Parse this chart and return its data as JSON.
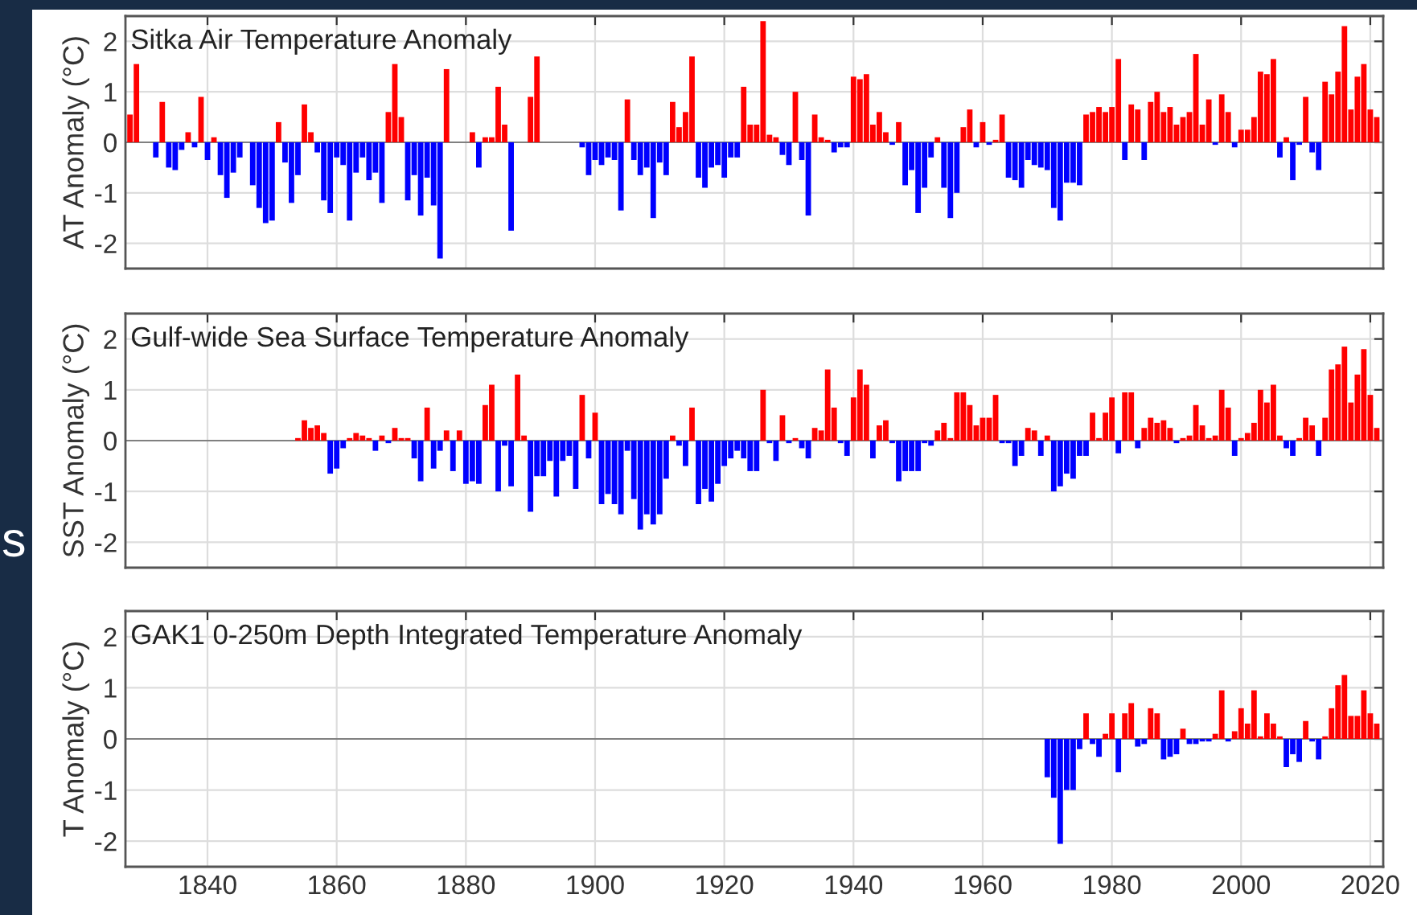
{
  "chart_data": [
    {
      "type": "bar",
      "title": "Sitka Air Temperature Anomaly",
      "ylabel": "AT Anomaly (°C)",
      "annotations": [
        "s"
      ],
      "x": [
        1828,
        1829,
        1830,
        1831,
        1832,
        1833,
        1834,
        1835,
        1836,
        1837,
        1838,
        1839,
        1840,
        1841,
        1842,
        1843,
        1844,
        1845,
        1846,
        1847,
        1848,
        1849,
        1850,
        1851,
        1852,
        1853,
        1854,
        1855,
        1856,
        1857,
        1858,
        1859,
        1860,
        1861,
        1862,
        1863,
        1864,
        1865,
        1866,
        1867,
        1868,
        1869,
        1870,
        1871,
        1872,
        1873,
        1874,
        1875,
        1876,
        1877,
        1878,
        1879,
        1880,
        1881,
        1882,
        1883,
        1884,
        1885,
        1886,
        1887,
        1888,
        1889,
        1890,
        1891,
        1892,
        1893,
        1894,
        1895,
        1896,
        1897,
        1898,
        1899,
        1900,
        1901,
        1902,
        1903,
        1904,
        1905,
        1906,
        1907,
        1908,
        1909,
        1910,
        1911,
        1912,
        1913,
        1914,
        1915,
        1916,
        1917,
        1918,
        1919,
        1920,
        1921,
        1922,
        1923,
        1924,
        1925,
        1926,
        1927,
        1928,
        1929,
        1930,
        1931,
        1932,
        1933,
        1934,
        1935,
        1936,
        1937,
        1938,
        1939,
        1940,
        1941,
        1942,
        1943,
        1944,
        1945,
        1946,
        1947,
        1948,
        1949,
        1950,
        1951,
        1952,
        1953,
        1954,
        1955,
        1956,
        1957,
        1958,
        1959,
        1960,
        1961,
        1962,
        1963,
        1964,
        1965,
        1966,
        1967,
        1968,
        1969,
        1970,
        1971,
        1972,
        1973,
        1974,
        1975,
        1976,
        1977,
        1978,
        1979,
        1980,
        1981,
        1982,
        1983,
        1984,
        1985,
        1986,
        1987,
        1988,
        1989,
        1990,
        1991,
        1992,
        1993,
        1994,
        1995,
        1996,
        1997,
        1998,
        1999,
        2000,
        2001,
        2002,
        2003,
        2004,
        2005,
        2006,
        2007,
        2008,
        2009,
        2010,
        2011,
        2012,
        2013,
        2014,
        2015,
        2016,
        2017,
        2018,
        2019,
        2020,
        2021
      ],
      "values": [
        0.55,
        1.55,
        null,
        null,
        -0.3,
        0.8,
        -0.5,
        -0.55,
        -0.15,
        0.2,
        -0.1,
        0.9,
        -0.35,
        0.1,
        -0.65,
        -1.1,
        -0.6,
        -0.3,
        null,
        -0.85,
        -1.3,
        -1.6,
        -1.55,
        0.4,
        -0.4,
        -1.2,
        -0.65,
        0.75,
        0.2,
        -0.2,
        -1.15,
        -1.4,
        -0.3,
        -0.45,
        -1.55,
        -0.6,
        -0.3,
        -0.75,
        -0.6,
        -1.2,
        0.6,
        1.55,
        0.5,
        -1.15,
        -0.65,
        -1.45,
        -0.7,
        -1.25,
        -2.3,
        1.45,
        null,
        null,
        null,
        0.2,
        -0.5,
        0.1,
        0.1,
        1.1,
        0.35,
        -1.75,
        null,
        null,
        0.9,
        1.7,
        null,
        null,
        null,
        null,
        null,
        null,
        -0.1,
        -0.65,
        -0.35,
        -0.45,
        -0.3,
        -0.35,
        -1.35,
        0.85,
        -0.35,
        -0.65,
        -0.5,
        -1.5,
        -0.4,
        -0.65,
        0.8,
        0.3,
        0.6,
        1.7,
        -0.7,
        -0.9,
        -0.5,
        -0.45,
        -0.7,
        -0.3,
        -0.3,
        1.1,
        0.35,
        0.35,
        2.4,
        0.15,
        0.1,
        -0.25,
        -0.45,
        1.0,
        -0.35,
        -1.45,
        0.55,
        0.1,
        0.05,
        -0.2,
        -0.1,
        -0.1,
        1.3,
        1.25,
        1.35,
        0.35,
        0.6,
        0.2,
        -0.05,
        0.4,
        -0.85,
        -0.55,
        -1.4,
        -0.9,
        -0.3,
        0.1,
        -0.9,
        -1.5,
        -1.0,
        0.3,
        0.65,
        -0.1,
        0.4,
        -0.05,
        0.05,
        0.55,
        -0.7,
        -0.75,
        -0.9,
        -0.35,
        -0.45,
        -0.5,
        -0.55,
        -1.3,
        -1.55,
        -0.8,
        -0.8,
        -0.85,
        0.55,
        0.6,
        0.7,
        0.6,
        0.7,
        1.65,
        -0.35,
        0.75,
        0.65,
        -0.35,
        0.8,
        1.0,
        0.6,
        0.7,
        0.35,
        0.5,
        0.6,
        1.75,
        0.35,
        0.85,
        -0.05,
        0.95,
        0.6,
        -0.1,
        0.25,
        0.25,
        0.5,
        1.4,
        1.35,
        1.65,
        -0.3,
        0.1,
        -0.75,
        -0.05,
        0.9,
        -0.2,
        -0.55,
        1.2,
        0.95,
        1.4,
        2.3,
        0.65,
        1.3,
        1.55,
        0.65,
        0.5
      ],
      "colors": [
        "#ff0000",
        "#ff0000",
        null,
        null,
        "#0000ff",
        "#ff0000",
        "#0000ff",
        "#0000ff",
        "#0000ff",
        "#ff0000",
        "#0000ff",
        "#ff0000",
        "#0000ff",
        "#ff0000",
        "#0000ff",
        "#0000ff",
        "#0000ff",
        "#0000ff",
        null,
        "#0000ff",
        "#0000ff",
        "#0000ff",
        "#0000ff",
        "#ff0000",
        "#0000ff",
        "#0000ff",
        "#0000ff",
        "#ff0000",
        "#ff0000",
        "#0000ff",
        "#0000ff",
        "#0000ff",
        "#0000ff",
        "#0000ff",
        "#0000ff",
        "#0000ff",
        "#0000ff",
        "#0000ff",
        "#0000ff",
        "#0000ff",
        "#ff0000",
        "#ff0000",
        "#ff0000",
        "#0000ff",
        "#0000ff",
        "#0000ff",
        "#0000ff",
        "#0000ff",
        "#0000ff",
        "#ff0000",
        null,
        null,
        null,
        "#ff0000",
        "#0000ff",
        "#ff0000",
        "#ff0000",
        "#ff0000",
        "#ff0000",
        "#0000ff",
        null,
        null,
        "#ff0000",
        "#ff0000",
        null,
        null,
        null,
        null,
        null,
        null,
        "#0000ff",
        "#0000ff",
        "#0000ff",
        "#0000ff",
        "#0000ff",
        "#0000ff",
        "#0000ff",
        "#ff0000",
        "#0000ff",
        "#0000ff",
        "#0000ff",
        "#0000ff",
        "#0000ff",
        "#0000ff",
        "#ff0000",
        "#ff0000",
        "#ff0000",
        "#ff0000",
        "#0000ff",
        "#0000ff",
        "#0000ff",
        "#0000ff",
        "#0000ff",
        "#0000ff",
        "#0000ff",
        "#ff0000",
        "#ff0000",
        "#ff0000",
        "#ff0000",
        "#ff0000",
        "#ff0000",
        "#0000ff",
        "#0000ff",
        "#ff0000",
        "#0000ff",
        "#0000ff",
        "#ff0000",
        "#ff0000",
        "#ff0000",
        "#0000ff",
        "#0000ff",
        "#0000ff",
        "#ff0000",
        "#ff0000",
        "#ff0000",
        "#ff0000",
        "#ff0000",
        "#ff0000",
        "#0000ff",
        "#ff0000",
        "#0000ff",
        "#0000ff",
        "#0000ff",
        "#0000ff",
        "#0000ff",
        "#ff0000",
        "#0000ff",
        "#0000ff",
        "#0000ff",
        "#ff0000",
        "#ff0000",
        "#0000ff",
        "#ff0000",
        "#0000ff",
        "#ff0000",
        "#ff0000",
        "#0000ff",
        "#0000ff",
        "#0000ff",
        "#0000ff",
        "#0000ff",
        "#0000ff",
        "#0000ff",
        "#0000ff",
        "#0000ff",
        "#0000ff",
        "#0000ff",
        "#0000ff",
        "#ff0000",
        "#ff0000",
        "#ff0000",
        "#ff0000",
        "#ff0000",
        "#ff0000",
        "#0000ff",
        "#ff0000",
        "#ff0000",
        "#0000ff",
        "#ff0000",
        "#ff0000",
        "#ff0000",
        "#ff0000",
        "#ff0000",
        "#ff0000",
        "#ff0000",
        "#ff0000",
        "#ff0000",
        "#ff0000",
        "#0000ff",
        "#ff0000",
        "#ff0000",
        "#0000ff",
        "#ff0000",
        "#ff0000",
        "#ff0000",
        "#ff0000",
        "#ff0000",
        "#ff0000",
        "#0000ff",
        "#ff0000",
        "#0000ff",
        "#0000ff",
        "#ff0000",
        "#0000ff",
        "#0000ff",
        "#ff0000",
        "#ff0000",
        "#ff0000",
        "#ff0000",
        "#ff0000",
        "#ff0000",
        "#ff0000",
        "#ff0000",
        "#ff0000"
      ],
      "xlim": [
        1827.3,
        2022
      ],
      "ylim": [
        -2.5,
        2.5
      ],
      "xticks": [
        1840,
        1860,
        1880,
        1900,
        1920,
        1940,
        1960,
        1980,
        2000,
        2020
      ],
      "yticks": [
        -2,
        -1,
        0,
        1,
        2
      ],
      "grid": true,
      "tick_labels": "y"
    },
    {
      "type": "bar",
      "title": "Gulf-wide Sea Surface Temperature Anomaly",
      "ylabel": "SST Anomaly (°C)",
      "x": [
        1854,
        1855,
        1856,
        1857,
        1858,
        1859,
        1860,
        1861,
        1862,
        1863,
        1864,
        1865,
        1866,
        1867,
        1868,
        1869,
        1870,
        1871,
        1872,
        1873,
        1874,
        1875,
        1876,
        1877,
        1878,
        1879,
        1880,
        1881,
        1882,
        1883,
        1884,
        1885,
        1886,
        1887,
        1888,
        1889,
        1890,
        1891,
        1892,
        1893,
        1894,
        1895,
        1896,
        1897,
        1898,
        1899,
        1900,
        1901,
        1902,
        1903,
        1904,
        1905,
        1906,
        1907,
        1908,
        1909,
        1910,
        1911,
        1912,
        1913,
        1914,
        1915,
        1916,
        1917,
        1918,
        1919,
        1920,
        1921,
        1922,
        1923,
        1924,
        1925,
        1926,
        1927,
        1928,
        1929,
        1930,
        1931,
        1932,
        1933,
        1934,
        1935,
        1936,
        1937,
        1938,
        1939,
        1940,
        1941,
        1942,
        1943,
        1944,
        1945,
        1946,
        1947,
        1948,
        1949,
        1950,
        1951,
        1952,
        1953,
        1954,
        1955,
        1956,
        1957,
        1958,
        1959,
        1960,
        1961,
        1962,
        1963,
        1964,
        1965,
        1966,
        1967,
        1968,
        1969,
        1970,
        1971,
        1972,
        1973,
        1974,
        1975,
        1976,
        1977,
        1978,
        1979,
        1980,
        1981,
        1982,
        1983,
        1984,
        1985,
        1986,
        1987,
        1988,
        1989,
        1990,
        1991,
        1992,
        1993,
        1994,
        1995,
        1996,
        1997,
        1998,
        1999,
        2000,
        2001,
        2002,
        2003,
        2004,
        2005,
        2006,
        2007,
        2008,
        2009,
        2010,
        2011,
        2012,
        2013,
        2014,
        2015,
        2016,
        2017,
        2018,
        2019,
        2020,
        2021
      ],
      "values": [
        0.05,
        0.4,
        0.25,
        0.3,
        0.15,
        -0.65,
        -0.55,
        -0.15,
        0.05,
        0.15,
        0.1,
        0.05,
        -0.2,
        0.1,
        -0.05,
        0.25,
        0.05,
        0.05,
        -0.35,
        -0.8,
        0.65,
        -0.55,
        -0.2,
        0.2,
        -0.6,
        0.2,
        -0.85,
        -0.8,
        -0.85,
        0.7,
        1.1,
        -1.0,
        -0.1,
        -0.9,
        1.3,
        0.1,
        -1.4,
        -0.7,
        -0.7,
        -0.4,
        -1.1,
        -0.4,
        -0.3,
        -0.95,
        0.9,
        -0.35,
        0.55,
        -1.25,
        -1.05,
        -1.25,
        -1.45,
        -0.2,
        -1.15,
        -1.75,
        -1.45,
        -1.65,
        -1.45,
        -0.75,
        0.1,
        -0.1,
        -0.5,
        0.65,
        -1.25,
        -0.95,
        -1.2,
        -0.85,
        -0.5,
        -0.35,
        -0.2,
        -0.35,
        -0.6,
        -0.6,
        1.0,
        -0.05,
        -0.4,
        0.5,
        -0.05,
        0.05,
        -0.15,
        -0.35,
        0.25,
        0.2,
        1.4,
        0.65,
        -0.05,
        -0.3,
        0.85,
        1.4,
        1.1,
        -0.35,
        0.3,
        0.4,
        -0.05,
        -0.8,
        -0.6,
        -0.6,
        -0.6,
        -0.05,
        -0.1,
        0.2,
        0.35,
        0.05,
        0.95,
        0.95,
        0.7,
        0.3,
        0.45,
        0.45,
        0.9,
        -0.05,
        -0.05,
        -0.5,
        -0.3,
        0.25,
        0.2,
        -0.3,
        0.1,
        -1.0,
        -0.9,
        -0.65,
        -0.75,
        -0.3,
        -0.3,
        0.55,
        0.05,
        0.55,
        0.85,
        -0.25,
        0.95,
        0.95,
        -0.15,
        0.25,
        0.45,
        0.35,
        0.4,
        0.25,
        -0.05,
        0.05,
        0.1,
        0.7,
        0.3,
        0.05,
        0.1,
        1.0,
        0.65,
        -0.3,
        0.05,
        0.15,
        0.35,
        1.0,
        0.75,
        1.1,
        0.1,
        -0.15,
        -0.3,
        0.05,
        0.45,
        0.3,
        -0.3,
        0.45,
        1.4,
        1.5,
        1.85,
        0.75,
        1.3,
        1.8,
        0.9,
        0.25
      ],
      "colors": [
        "#ff0000",
        "#ff0000",
        "#ff0000",
        "#ff0000",
        "#ff0000",
        "#0000ff",
        "#0000ff",
        "#0000ff",
        "#ff0000",
        "#ff0000",
        "#ff0000",
        "#ff0000",
        "#0000ff",
        "#ff0000",
        "#0000ff",
        "#ff0000",
        "#ff0000",
        "#ff0000",
        "#0000ff",
        "#0000ff",
        "#ff0000",
        "#0000ff",
        "#0000ff",
        "#ff0000",
        "#0000ff",
        "#ff0000",
        "#0000ff",
        "#0000ff",
        "#0000ff",
        "#ff0000",
        "#ff0000",
        "#0000ff",
        "#0000ff",
        "#0000ff",
        "#ff0000",
        "#ff0000",
        "#0000ff",
        "#0000ff",
        "#0000ff",
        "#0000ff",
        "#0000ff",
        "#0000ff",
        "#0000ff",
        "#0000ff",
        "#ff0000",
        "#0000ff",
        "#ff0000",
        "#0000ff",
        "#0000ff",
        "#0000ff",
        "#0000ff",
        "#0000ff",
        "#0000ff",
        "#0000ff",
        "#0000ff",
        "#0000ff",
        "#0000ff",
        "#0000ff",
        "#ff0000",
        "#0000ff",
        "#0000ff",
        "#ff0000",
        "#0000ff",
        "#0000ff",
        "#0000ff",
        "#0000ff",
        "#0000ff",
        "#0000ff",
        "#0000ff",
        "#0000ff",
        "#0000ff",
        "#0000ff",
        "#ff0000",
        "#0000ff",
        "#0000ff",
        "#ff0000",
        "#0000ff",
        "#ff0000",
        "#0000ff",
        "#0000ff",
        "#ff0000",
        "#ff0000",
        "#ff0000",
        "#ff0000",
        "#0000ff",
        "#0000ff",
        "#ff0000",
        "#ff0000",
        "#ff0000",
        "#0000ff",
        "#ff0000",
        "#ff0000",
        "#0000ff",
        "#0000ff",
        "#0000ff",
        "#0000ff",
        "#0000ff",
        "#0000ff",
        "#0000ff",
        "#ff0000",
        "#ff0000",
        "#ff0000",
        "#ff0000",
        "#ff0000",
        "#ff0000",
        "#ff0000",
        "#ff0000",
        "#ff0000",
        "#ff0000",
        "#0000ff",
        "#0000ff",
        "#0000ff",
        "#0000ff",
        "#ff0000",
        "#ff0000",
        "#0000ff",
        "#ff0000",
        "#0000ff",
        "#0000ff",
        "#0000ff",
        "#0000ff",
        "#0000ff",
        "#0000ff",
        "#ff0000",
        "#ff0000",
        "#ff0000",
        "#ff0000",
        "#0000ff",
        "#ff0000",
        "#ff0000",
        "#0000ff",
        "#ff0000",
        "#ff0000",
        "#ff0000",
        "#ff0000",
        "#ff0000",
        "#0000ff",
        "#ff0000",
        "#ff0000",
        "#ff0000",
        "#ff0000",
        "#ff0000",
        "#ff0000",
        "#ff0000",
        "#ff0000",
        "#0000ff",
        "#ff0000",
        "#ff0000",
        "#ff0000",
        "#ff0000",
        "#ff0000",
        "#ff0000",
        "#ff0000",
        "#0000ff",
        "#0000ff",
        "#ff0000",
        "#ff0000",
        "#ff0000",
        "#0000ff",
        "#ff0000",
        "#ff0000",
        "#ff0000",
        "#ff0000",
        "#ff0000",
        "#ff0000",
        "#ff0000",
        "#ff0000",
        "#ff0000"
      ],
      "xlim": [
        1827.3,
        2022
      ],
      "ylim": [
        -2.5,
        2.5
      ],
      "xticks": [
        1840,
        1860,
        1880,
        1900,
        1920,
        1940,
        1960,
        1980,
        2000,
        2020
      ],
      "yticks": [
        -2,
        -1,
        0,
        1,
        2
      ],
      "grid": true,
      "tick_labels": "y"
    },
    {
      "type": "bar",
      "title": "GAK1 0-250m Depth Integrated Temperature Anomaly",
      "ylabel": "T Anomaly (°C)",
      "x": [
        1970,
        1971,
        1972,
        1973,
        1974,
        1975,
        1976,
        1977,
        1978,
        1979,
        1980,
        1981,
        1982,
        1983,
        1984,
        1985,
        1986,
        1987,
        1988,
        1989,
        1990,
        1991,
        1992,
        1993,
        1994,
        1995,
        1996,
        1997,
        1998,
        1999,
        2000,
        2001,
        2002,
        2003,
        2004,
        2005,
        2006,
        2007,
        2008,
        2009,
        2010,
        2011,
        2012,
        2013,
        2014,
        2015,
        2016,
        2017,
        2018,
        2019,
        2020,
        2021
      ],
      "values": [
        -0.75,
        -1.15,
        -2.05,
        -1.0,
        -1.0,
        -0.2,
        0.5,
        -0.1,
        -0.35,
        0.1,
        0.5,
        -0.65,
        0.5,
        0.7,
        -0.15,
        -0.1,
        0.6,
        0.5,
        -0.4,
        -0.35,
        -0.3,
        0.2,
        -0.1,
        -0.1,
        -0.05,
        -0.05,
        0.1,
        0.95,
        -0.05,
        0.15,
        0.6,
        0.3,
        0.95,
        0.05,
        0.5,
        0.3,
        0.05,
        -0.55,
        -0.3,
        -0.45,
        0.35,
        -0.05,
        -0.4,
        0.05,
        0.6,
        1.05,
        1.25,
        0.45,
        0.45,
        0.95,
        0.5,
        0.3
      ],
      "colors": [
        "#0000ff",
        "#0000ff",
        "#0000ff",
        "#0000ff",
        "#0000ff",
        "#0000ff",
        "#ff0000",
        "#0000ff",
        "#0000ff",
        "#ff0000",
        "#ff0000",
        "#0000ff",
        "#ff0000",
        "#ff0000",
        "#0000ff",
        "#0000ff",
        "#ff0000",
        "#ff0000",
        "#0000ff",
        "#0000ff",
        "#0000ff",
        "#ff0000",
        "#0000ff",
        "#0000ff",
        "#0000ff",
        "#0000ff",
        "#ff0000",
        "#ff0000",
        "#0000ff",
        "#ff0000",
        "#ff0000",
        "#ff0000",
        "#ff0000",
        "#ff0000",
        "#ff0000",
        "#ff0000",
        "#ff0000",
        "#0000ff",
        "#0000ff",
        "#0000ff",
        "#ff0000",
        "#0000ff",
        "#0000ff",
        "#ff0000",
        "#ff0000",
        "#ff0000",
        "#ff0000",
        "#ff0000",
        "#ff0000",
        "#ff0000",
        "#ff0000",
        "#ff0000"
      ],
      "xlim": [
        1827.3,
        2022
      ],
      "ylim": [
        -2.5,
        2.5
      ],
      "xticks": [
        1840,
        1860,
        1880,
        1900,
        1920,
        1940,
        1960,
        1980,
        2000,
        2020
      ],
      "yticks": [
        -2,
        -1,
        0,
        1,
        2
      ],
      "grid": true
    }
  ]
}
